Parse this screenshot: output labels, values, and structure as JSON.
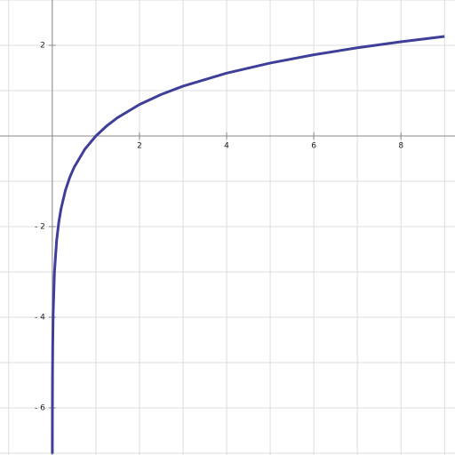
{
  "chart_data": {
    "type": "line",
    "x": [
      0.0009,
      0.002,
      0.005,
      0.01,
      0.02,
      0.05,
      0.1,
      0.15,
      0.2,
      0.3,
      0.4,
      0.5,
      0.75,
      1,
      1.25,
      1.5,
      2,
      2.5,
      3,
      4,
      5,
      6,
      7,
      8,
      9
    ],
    "series": [
      {
        "color": "#3f3f99",
        "values": [
          -7.013,
          -6.215,
          -5.298,
          -4.605,
          -3.912,
          -2.996,
          -2.303,
          -1.897,
          -1.609,
          -1.204,
          -0.916,
          -0.693,
          -0.288,
          0,
          0.223,
          0.405,
          0.693,
          0.916,
          1.099,
          1.386,
          1.609,
          1.792,
          1.946,
          2.079,
          2.197
        ]
      }
    ],
    "xlim": [
      -1.2,
      9.24
    ],
    "ylim": [
      -7.04,
      3.0
    ],
    "xticks": [
      2,
      4,
      6,
      8
    ],
    "yticks": [
      2,
      {
        "value": -2,
        "label": "- 2"
      },
      {
        "value": -4,
        "label": "- 4"
      },
      {
        "value": -6,
        "label": "- 6"
      }
    ],
    "xgrid": [
      -1,
      0,
      1,
      2,
      3,
      4,
      5,
      6,
      7,
      8,
      9
    ],
    "ygrid": [
      -7,
      -6,
      -5,
      -4,
      -3,
      -2,
      -1,
      0,
      1,
      2,
      3
    ],
    "grid": true
  }
}
